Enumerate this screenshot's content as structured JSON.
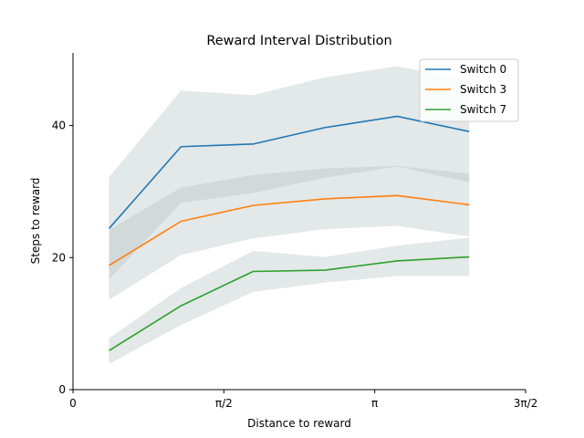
{
  "chart_data": {
    "type": "line",
    "title": "Reward Interval Distribution",
    "xlabel": "Distance to reward",
    "ylabel": "Steps to reward",
    "xlim": [
      0,
      4.712389
    ],
    "ylim": [
      0,
      51
    ],
    "x_ticks": [
      {
        "value": 0,
        "label": "0"
      },
      {
        "value": 1.570796,
        "label": "π/2"
      },
      {
        "value": 3.141593,
        "label": "π"
      },
      {
        "value": 4.712389,
        "label": "3π/2"
      }
    ],
    "y_ticks": [
      {
        "value": 0,
        "label": "0"
      },
      {
        "value": 20,
        "label": "20"
      },
      {
        "value": 40,
        "label": "40"
      }
    ],
    "x": [
      0.375,
      1.125,
      1.875,
      2.625,
      3.375,
      4.125
    ],
    "series": [
      {
        "name": "Switch 0",
        "color": "#1f77b4",
        "values": [
          24.4,
          36.8,
          37.2,
          39.7,
          41.4,
          39.1
        ],
        "lower": [
          16.7,
          28.3,
          29.8,
          32.1,
          33.8,
          31.4
        ],
        "upper": [
          32.2,
          45.3,
          44.6,
          47.3,
          49.0,
          46.8
        ]
      },
      {
        "name": "Switch 3",
        "color": "#ff7f0e",
        "values": [
          18.8,
          25.5,
          27.9,
          28.9,
          29.4,
          28.0
        ],
        "lower": [
          13.6,
          20.4,
          22.9,
          24.3,
          24.8,
          23.2
        ],
        "upper": [
          24.2,
          30.6,
          32.5,
          33.5,
          33.9,
          32.7
        ]
      },
      {
        "name": "Switch 7",
        "color": "#2ca02c",
        "values": [
          5.9,
          12.7,
          17.9,
          18.1,
          19.5,
          20.1
        ],
        "lower": [
          3.9,
          9.8,
          14.8,
          16.2,
          17.2,
          17.2
        ],
        "upper": [
          7.8,
          15.4,
          21.0,
          20.1,
          21.8,
          23.0
        ]
      }
    ],
    "band_color": "#b0bcbc",
    "legend_position": "top-right",
    "grid": false
  }
}
